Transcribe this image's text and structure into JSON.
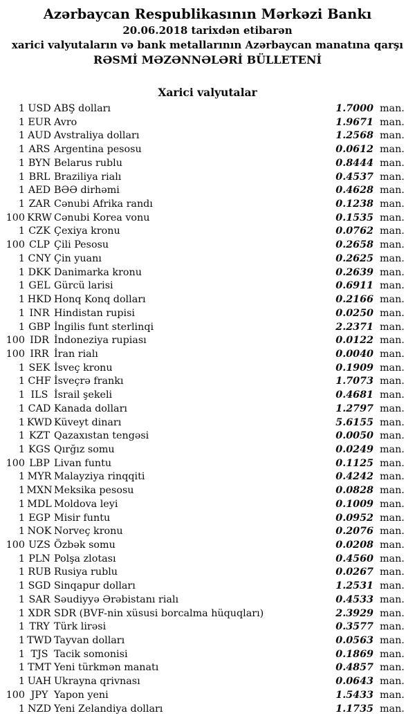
{
  "page": {
    "background": "#ffffff",
    "text_color": "#000000"
  },
  "header": {
    "bank_name": "Azərbaycan Respublikasının Mərkəzi Bankı",
    "date_line": "20.06.2018 tarixdən etibarən",
    "subtitle_line": "xarici valyutaların və bank metallarının Azərbaycan manatına qarşı",
    "bulletin_title": "RƏSMİ MƏZƏNNƏLƏRİ BÜLLETENİ"
  },
  "section": {
    "title": "Xarici valyutalar"
  },
  "unit_label": "man.",
  "rates": [
    {
      "nominal": "1",
      "code": "USD",
      "name": "ABŞ dolları",
      "rate": "1.7000"
    },
    {
      "nominal": "1",
      "code": "EUR",
      "name": "Avro",
      "rate": "1.9671"
    },
    {
      "nominal": "1",
      "code": "AUD",
      "name": "Avstraliya dolları",
      "rate": "1.2568"
    },
    {
      "nominal": "1",
      "code": "ARS",
      "name": "Argentina pesosu",
      "rate": "0.0612"
    },
    {
      "nominal": "1",
      "code": "BYN",
      "name": "Belarus rublu",
      "rate": "0.8444"
    },
    {
      "nominal": "1",
      "code": "BRL",
      "name": "Braziliya rialı",
      "rate": "0.4537"
    },
    {
      "nominal": "1",
      "code": "AED",
      "name": "BƏƏ dirhəmi",
      "rate": "0.4628"
    },
    {
      "nominal": "1",
      "code": "ZAR",
      "name": "Cənubi Afrika randı",
      "rate": "0.1238"
    },
    {
      "nominal": "100",
      "code": "KRW",
      "name": "Cənubi Korea vonu",
      "rate": "0.1535"
    },
    {
      "nominal": "1",
      "code": "CZK",
      "name": "Çexiya kronu",
      "rate": "0.0762"
    },
    {
      "nominal": "100",
      "code": "CLP",
      "name": "Çili Pesosu",
      "rate": "0.2658"
    },
    {
      "nominal": "1",
      "code": "CNY",
      "name": "Çin yuanı",
      "rate": "0.2625"
    },
    {
      "nominal": "1",
      "code": "DKK",
      "name": "Danimarka kronu",
      "rate": "0.2639"
    },
    {
      "nominal": "1",
      "code": "GEL",
      "name": "Gürcü larisi",
      "rate": "0.6911"
    },
    {
      "nominal": "1",
      "code": "HKD",
      "name": "Honq Konq dolları",
      "rate": "0.2166"
    },
    {
      "nominal": "1",
      "code": "INR",
      "name": "Hindistan rupisi",
      "rate": "0.0250"
    },
    {
      "nominal": "1",
      "code": "GBP",
      "name": "İngilis funt sterlinqi",
      "rate": "2.2371"
    },
    {
      "nominal": "100",
      "code": "IDR",
      "name": "İndoneziya rupiası",
      "rate": "0.0122"
    },
    {
      "nominal": "100",
      "code": "IRR",
      "name": "İran rialı",
      "rate": "0.0040"
    },
    {
      "nominal": "1",
      "code": "SEK",
      "name": "İsveç kronu",
      "rate": "0.1909"
    },
    {
      "nominal": "1",
      "code": "CHF",
      "name": "İsveçrə frankı",
      "rate": "1.7073"
    },
    {
      "nominal": "1",
      "code": "ILS",
      "name": "İsrail şekeli",
      "rate": "0.4681"
    },
    {
      "nominal": "1",
      "code": "CAD",
      "name": "Kanada dolları",
      "rate": "1.2797"
    },
    {
      "nominal": "1",
      "code": "KWD",
      "name": "Küveyt dinarı",
      "rate": "5.6155"
    },
    {
      "nominal": "1",
      "code": "KZT",
      "name": "Qazaxıstan tengəsi",
      "rate": "0.0050"
    },
    {
      "nominal": "1",
      "code": "KGS",
      "name": "Qırğız somu",
      "rate": "0.0249"
    },
    {
      "nominal": "100",
      "code": "LBP",
      "name": "Livan funtu",
      "rate": "0.1125"
    },
    {
      "nominal": "1",
      "code": "MYR",
      "name": "Malayziya rinqqiti",
      "rate": "0.4242"
    },
    {
      "nominal": "1",
      "code": "MXN",
      "name": "Meksika pesosu",
      "rate": "0.0828"
    },
    {
      "nominal": "1",
      "code": "MDL",
      "name": "Moldova leyi",
      "rate": "0.1009"
    },
    {
      "nominal": "1",
      "code": "EGP",
      "name": "Misir funtu",
      "rate": "0.0952"
    },
    {
      "nominal": "1",
      "code": "NOK",
      "name": "Norveç kronu",
      "rate": "0.2076"
    },
    {
      "nominal": "100",
      "code": "UZS",
      "name": "Özbək somu",
      "rate": "0.0208"
    },
    {
      "nominal": "1",
      "code": "PLN",
      "name": "Polşa zlotası",
      "rate": "0.4560"
    },
    {
      "nominal": "1",
      "code": "RUB",
      "name": "Rusiya rublu",
      "rate": "0.0267"
    },
    {
      "nominal": "1",
      "code": "SGD",
      "name": "Sinqapur dolları",
      "rate": "1.2531"
    },
    {
      "nominal": "1",
      "code": "SAR",
      "name": "Səudiyyə Ərəbistanı rialı",
      "rate": "0.4533"
    },
    {
      "nominal": "1",
      "code": "XDR",
      "name": "SDR (BVF-nin xüsusi borcalma hüquqları)",
      "rate": "2.3929"
    },
    {
      "nominal": "1",
      "code": "TRY",
      "name": "Türk lirəsi",
      "rate": "0.3577"
    },
    {
      "nominal": "1",
      "code": "TWD",
      "name": "Tayvan dolları",
      "rate": "0.0563"
    },
    {
      "nominal": "1",
      "code": "TJS",
      "name": "Tacik somonisi",
      "rate": "0.1869"
    },
    {
      "nominal": "1",
      "code": "TMT",
      "name": "Yeni türkmən manatı",
      "rate": "0.4857"
    },
    {
      "nominal": "1",
      "code": "UAH",
      "name": "Ukrayna qrivnası",
      "rate": "0.0643"
    },
    {
      "nominal": "100",
      "code": "JPY",
      "name": "Yapon yeni",
      "rate": "1.5433"
    },
    {
      "nominal": "1",
      "code": "NZD",
      "name": "Yeni Zelandiya dolları",
      "rate": "1.1735"
    }
  ]
}
